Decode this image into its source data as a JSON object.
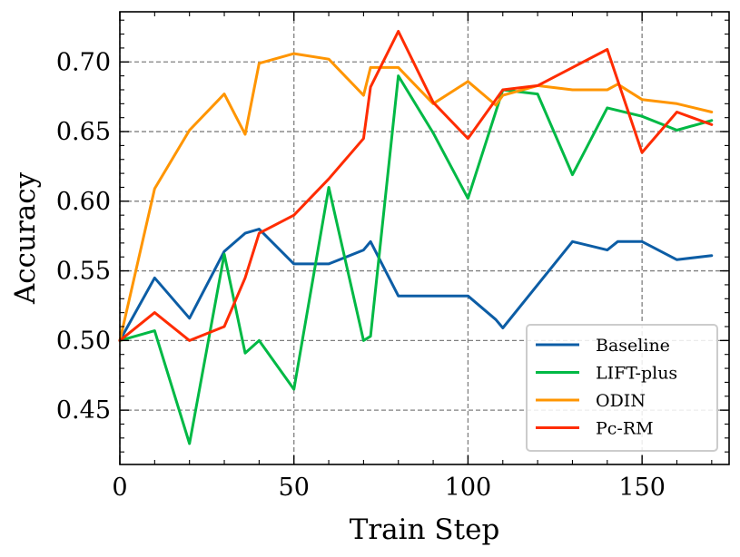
{
  "chart_data": {
    "type": "line",
    "title": "",
    "xlabel": "Train Step",
    "ylabel": "Accuracy",
    "xlim": [
      0,
      175
    ],
    "ylim": [
      0.411,
      0.736
    ],
    "xticks": [
      0,
      50,
      100,
      150
    ],
    "xtick_labels": [
      "0",
      "50",
      "100",
      "150"
    ],
    "yticks": [
      0.45,
      0.5,
      0.55,
      0.6,
      0.65,
      0.7
    ],
    "ytick_labels": [
      "0.45",
      "0.50",
      "0.55",
      "0.60",
      "0.65",
      "0.70"
    ],
    "x_minor_step": 10,
    "y_minor_step": 0.01,
    "grid": true,
    "legend_position": "lower-right",
    "series": [
      {
        "name": "Baseline",
        "color": "#0C5DA5",
        "x": [
          0,
          10,
          20,
          30,
          36,
          40,
          50,
          60,
          70,
          72,
          80,
          90,
          100,
          108,
          110,
          120,
          130,
          140,
          143,
          150,
          160,
          170
        ],
        "y": [
          0.5,
          0.545,
          0.516,
          0.564,
          0.577,
          0.58,
          0.555,
          0.555,
          0.565,
          0.571,
          0.532,
          0.532,
          0.532,
          0.515,
          0.509,
          0.54,
          0.571,
          0.565,
          0.571,
          0.571,
          0.558,
          0.561
        ]
      },
      {
        "name": "LIFT-plus",
        "color": "#00B945",
        "x": [
          0,
          10,
          20,
          30,
          36,
          40,
          50,
          60,
          70,
          72,
          80,
          90,
          100,
          110,
          120,
          130,
          140,
          150,
          160,
          170
        ],
        "y": [
          0.5,
          0.507,
          0.426,
          0.562,
          0.491,
          0.5,
          0.465,
          0.61,
          0.5,
          0.503,
          0.69,
          0.649,
          0.602,
          0.68,
          0.677,
          0.619,
          0.667,
          0.661,
          0.651,
          0.658
        ]
      },
      {
        "name": "ODIN",
        "color": "#FF9500",
        "x": [
          0,
          10,
          20,
          30,
          36,
          40,
          50,
          60,
          70,
          72,
          80,
          90,
          100,
          108,
          110,
          120,
          130,
          140,
          143,
          150,
          160,
          170
        ],
        "y": [
          0.5,
          0.609,
          0.651,
          0.677,
          0.648,
          0.699,
          0.706,
          0.702,
          0.676,
          0.696,
          0.696,
          0.67,
          0.686,
          0.669,
          0.676,
          0.683,
          0.68,
          0.68,
          0.684,
          0.673,
          0.67,
          0.664
        ]
      },
      {
        "name": "Pc-RM",
        "color": "#FF2C00",
        "x": [
          0,
          10,
          20,
          30,
          36,
          40,
          50,
          60,
          70,
          72,
          80,
          90,
          100,
          110,
          120,
          130,
          140,
          150,
          160,
          170
        ],
        "y": [
          0.5,
          0.52,
          0.5,
          0.51,
          0.545,
          0.577,
          0.59,
          0.616,
          0.645,
          0.682,
          0.722,
          0.671,
          0.645,
          0.68,
          0.683,
          0.696,
          0.709,
          0.635,
          0.664,
          0.655
        ]
      }
    ]
  }
}
